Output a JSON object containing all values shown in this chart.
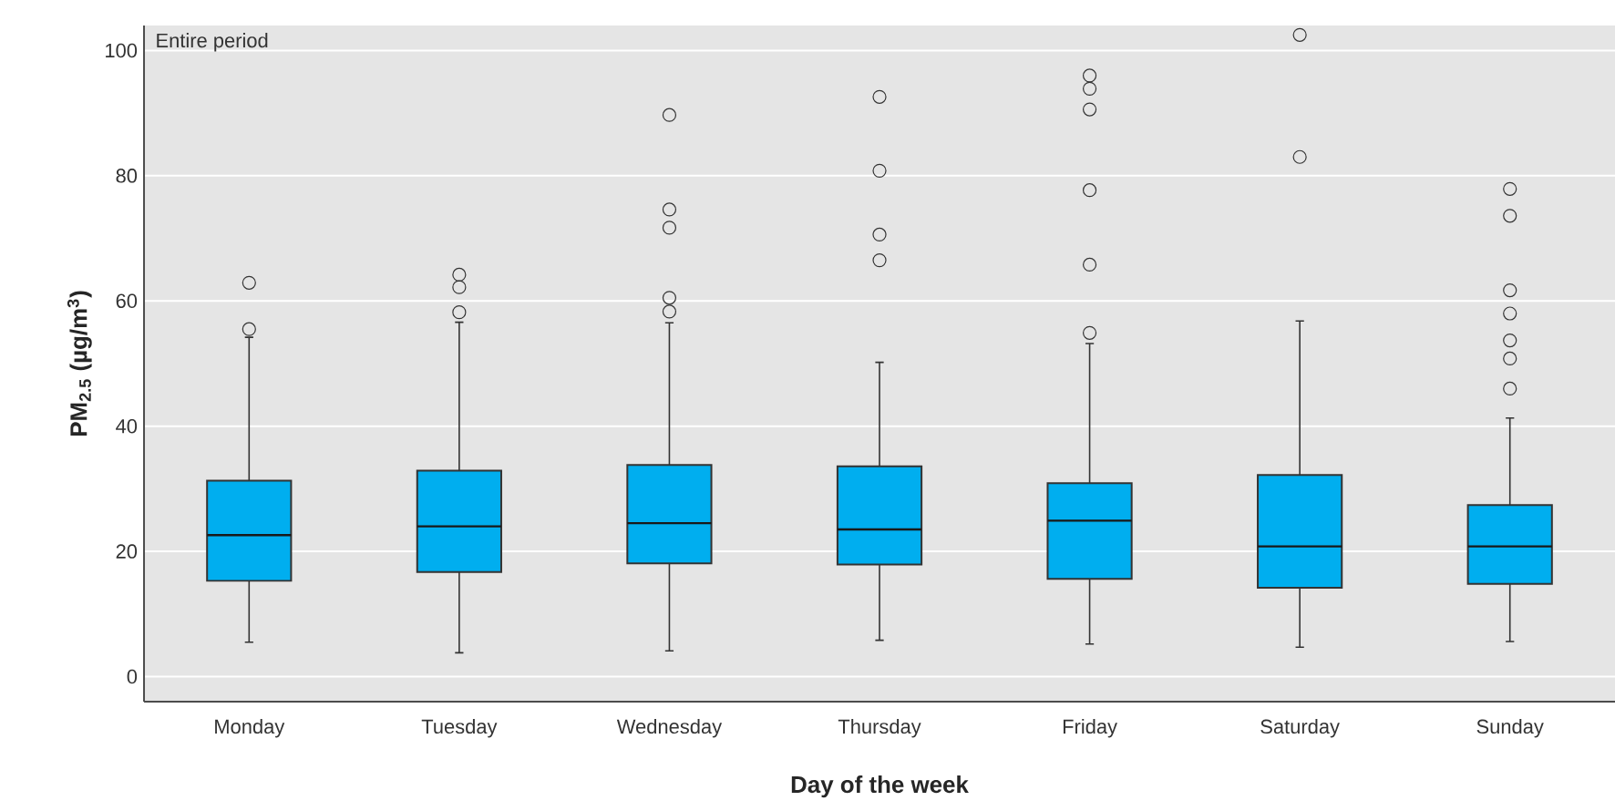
{
  "chart_data": {
    "type": "box",
    "xlabel": "Day of the week",
    "ylabel": "PM$_{2.5}$ (µg/m$^{3}$)",
    "annotations": [
      "Entire period"
    ],
    "categories": [
      "Monday",
      "Tuesday",
      "Wednesday",
      "Thursday",
      "Friday",
      "Saturday",
      "Sunday"
    ],
    "color": "#00aeef",
    "ylim": [
      -4,
      104
    ],
    "yticks": [
      0,
      20,
      40,
      60,
      80,
      100
    ],
    "grid": "y",
    "marker": "circle",
    "boxes": [
      {
        "low": 5.5,
        "q1": 15.3,
        "median": 22.6,
        "q3": 31.3,
        "high": 54.2,
        "outliers": [
          62.9,
          55.5
        ]
      },
      {
        "low": 3.8,
        "q1": 16.7,
        "median": 24.0,
        "q3": 32.9,
        "high": 56.6,
        "outliers": [
          64.2,
          62.2,
          58.2
        ]
      },
      {
        "low": 4.1,
        "q1": 18.1,
        "median": 24.5,
        "q3": 33.8,
        "high": 56.5,
        "outliers": [
          89.7,
          74.6,
          71.7,
          60.5,
          58.3
        ]
      },
      {
        "low": 5.8,
        "q1": 17.9,
        "median": 23.5,
        "q3": 33.6,
        "high": 50.2,
        "outliers": [
          92.6,
          80.8,
          70.6,
          66.5
        ]
      },
      {
        "low": 5.2,
        "q1": 15.6,
        "median": 24.9,
        "q3": 30.9,
        "high": 53.2,
        "outliers": [
          96.0,
          93.9,
          90.6,
          77.7,
          65.8,
          54.9
        ]
      },
      {
        "low": 4.7,
        "q1": 14.2,
        "median": 20.8,
        "q3": 32.2,
        "high": 56.8,
        "outliers": [
          102.5,
          83.0
        ]
      },
      {
        "low": 5.6,
        "q1": 14.8,
        "median": 20.8,
        "q3": 27.4,
        "high": 41.3,
        "outliers": [
          77.9,
          73.6,
          61.7,
          58.0,
          53.7,
          50.8,
          46.0
        ]
      }
    ]
  }
}
